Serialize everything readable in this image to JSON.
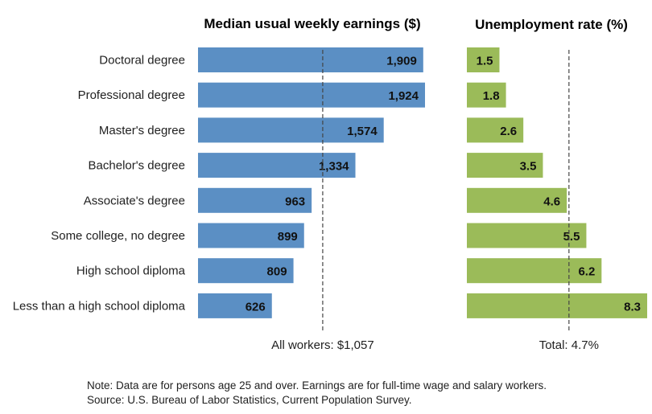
{
  "chart_data": [
    {
      "type": "bar",
      "orientation": "horizontal",
      "title": "Median usual weekly earnings ($)",
      "categories": [
        "Doctoral degree",
        "Professional degree",
        "Master's degree",
        "Bachelor's degree",
        "Associate's degree",
        "Some college, no degree",
        "High school diploma",
        "Less than a high school diploma"
      ],
      "values": [
        1909,
        1924,
        1574,
        1334,
        963,
        899,
        809,
        626
      ],
      "value_labels": [
        "1,909",
        "1,924",
        "1,574",
        "1,334",
        "963",
        "899",
        "809",
        "626"
      ],
      "reference_line": {
        "value": 1057,
        "label": "All workers: $1,057"
      },
      "xlim": [
        0,
        1924
      ],
      "grid": false,
      "color": "#5b8fc4"
    },
    {
      "type": "bar",
      "orientation": "horizontal",
      "title": "Unemployment rate (%)",
      "categories": [
        "Doctoral degree",
        "Professional degree",
        "Master's degree",
        "Bachelor's degree",
        "Associate's degree",
        "Some college, no degree",
        "High school diploma",
        "Less than a high school diploma"
      ],
      "values": [
        1.5,
        1.8,
        2.6,
        3.5,
        4.6,
        5.5,
        6.2,
        8.3
      ],
      "value_labels": [
        "1.5",
        "1.8",
        "2.6",
        "3.5",
        "4.6",
        "5.5",
        "6.2",
        "8.3"
      ],
      "reference_line": {
        "value": 4.7,
        "label": "Total: 4.7%"
      },
      "xlim": [
        0,
        8.3
      ],
      "grid": false,
      "color": "#9bbb59"
    }
  ],
  "notes": {
    "note": "Note: Data are for persons age 25 and over. Earnings are for full-time wage and salary workers.",
    "source": "Source: U.S. Bureau of Labor Statistics, Current Population Survey."
  }
}
